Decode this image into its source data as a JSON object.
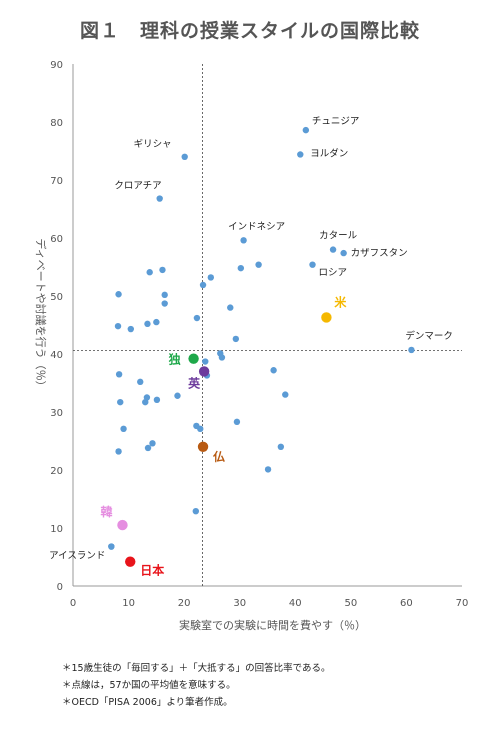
{
  "page": {
    "title": "図１　理科の授業スタイルの国際比較",
    "notes": [
      "＊15歳生徒の「毎回する」＋「大抵する」の回答比率である。",
      "＊点線は，57か国の平均値を意味する。",
      "＊OECD「PISA 2006」より筆者作成。"
    ]
  },
  "chart_data": {
    "type": "scatter",
    "title": "図１　理科の授業スタイルの国際比較",
    "xlabel": "実験室での実験に時間を費やす（％）",
    "ylabel": "ディベートや討議を行う（％）",
    "xlim": [
      0,
      70
    ],
    "ylim": [
      0,
      90
    ],
    "xticks": [
      0,
      10,
      20,
      30,
      40,
      50,
      60,
      70
    ],
    "yticks": [
      0,
      10,
      20,
      30,
      40,
      50,
      60,
      70,
      80,
      90
    ],
    "grid": false,
    "reference_lines": {
      "x": 23.3,
      "y": 40.6
    },
    "default_color": "#5b9bd5",
    "points": [
      [
        6.9,
        6.8
      ],
      [
        8.2,
        50.3
      ],
      [
        8.1,
        44.8
      ],
      [
        10.4,
        44.3
      ],
      [
        8.3,
        36.5
      ],
      [
        8.5,
        31.7
      ],
      [
        9.1,
        27.1
      ],
      [
        8.2,
        23.2
      ],
      [
        12.1,
        35.2
      ],
      [
        13.0,
        31.7
      ],
      [
        13.3,
        32.5
      ],
      [
        13.8,
        54.1
      ],
      [
        13.4,
        45.2
      ],
      [
        15.0,
        45.5
      ],
      [
        16.1,
        54.5
      ],
      [
        16.5,
        50.2
      ],
      [
        16.5,
        48.7
      ],
      [
        15.1,
        32.1
      ],
      [
        13.5,
        23.8
      ],
      [
        14.3,
        24.6
      ],
      [
        18.8,
        32.8
      ],
      [
        22.3,
        46.2
      ],
      [
        23.4,
        51.9
      ],
      [
        24.8,
        53.2
      ],
      [
        23.8,
        38.7
      ],
      [
        24.1,
        36.3
      ],
      [
        26.5,
        40.1
      ],
      [
        26.8,
        39.4
      ],
      [
        28.3,
        48.0
      ],
      [
        29.3,
        42.6
      ],
      [
        30.2,
        54.8
      ],
      [
        33.4,
        55.4
      ],
      [
        29.5,
        28.3
      ],
      [
        22.2,
        27.6
      ],
      [
        22.9,
        27.1
      ],
      [
        22.1,
        12.9
      ],
      [
        35.1,
        20.1
      ],
      [
        36.1,
        37.2
      ],
      [
        37.4,
        24.0
      ],
      [
        38.2,
        33.0
      ]
    ],
    "labeled_points": [
      {
        "name": "チュニジア",
        "x": 41.9,
        "y": 78.6
      },
      {
        "name": "ヨルダン",
        "x": 40.9,
        "y": 74.4
      },
      {
        "name": "ギリシャ",
        "x": 20.1,
        "y": 74.0
      },
      {
        "name": "クロアチア",
        "x": 15.6,
        "y": 66.8
      },
      {
        "name": "インドネシア",
        "x": 30.7,
        "y": 59.6
      },
      {
        "name": "カタール",
        "x": 46.8,
        "y": 58.0
      },
      {
        "name": "カザフスタン",
        "x": 48.7,
        "y": 57.4
      },
      {
        "name": "ロシア",
        "x": 43.1,
        "y": 55.4
      },
      {
        "name": "デンマーク",
        "x": 60.9,
        "y": 40.7
      },
      {
        "name": "アイスランド",
        "x": 6.9,
        "y": 6.8
      }
    ],
    "highlight_points": [
      {
        "name": "米",
        "x": 45.6,
        "y": 46.3,
        "color": "#f5b800"
      },
      {
        "name": "独",
        "x": 21.7,
        "y": 39.2,
        "color": "#1ea84a"
      },
      {
        "name": "英",
        "x": 23.6,
        "y": 37.0,
        "color": "#6c3a9c"
      },
      {
        "name": "仏",
        "x": 23.4,
        "y": 24.0,
        "color": "#b85a12"
      },
      {
        "name": "韓",
        "x": 8.9,
        "y": 10.5,
        "color": "#e58ee0"
      },
      {
        "name": "日本",
        "x": 10.3,
        "y": 4.2,
        "color": "#e8141b"
      }
    ]
  }
}
